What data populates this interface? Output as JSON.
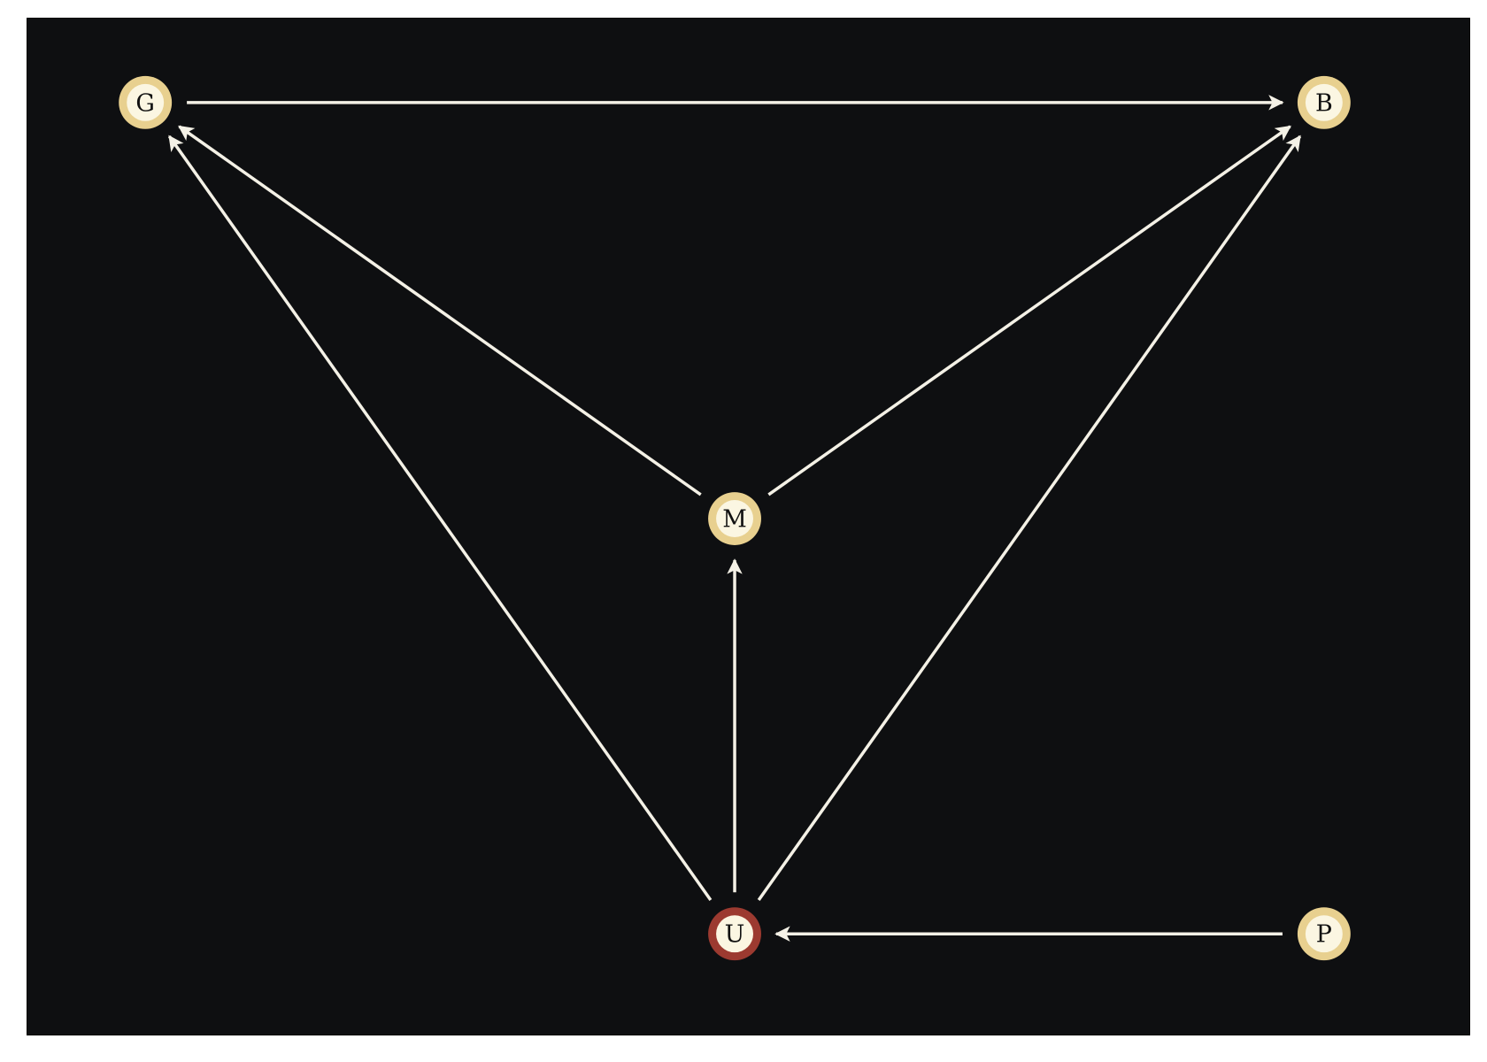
{
  "colors": {
    "background": "#0e0f11",
    "edge": "#f4f1e6",
    "node_fill": "#fbf6e2",
    "node_ring": "#e8d08f",
    "node_ring_highlight": "#9c3a30",
    "label": "#111111"
  },
  "nodes": [
    {
      "id": "G",
      "label": "G",
      "highlight": false
    },
    {
      "id": "B",
      "label": "B",
      "highlight": false
    },
    {
      "id": "M",
      "label": "M",
      "highlight": false
    },
    {
      "id": "U",
      "label": "U",
      "highlight": true
    },
    {
      "id": "P",
      "label": "P",
      "highlight": false
    }
  ],
  "edges": [
    {
      "from": "G",
      "to": "B"
    },
    {
      "from": "M",
      "to": "G"
    },
    {
      "from": "M",
      "to": "B"
    },
    {
      "from": "U",
      "to": "G"
    },
    {
      "from": "U",
      "to": "M"
    },
    {
      "from": "U",
      "to": "B"
    },
    {
      "from": "P",
      "to": "U"
    }
  ]
}
